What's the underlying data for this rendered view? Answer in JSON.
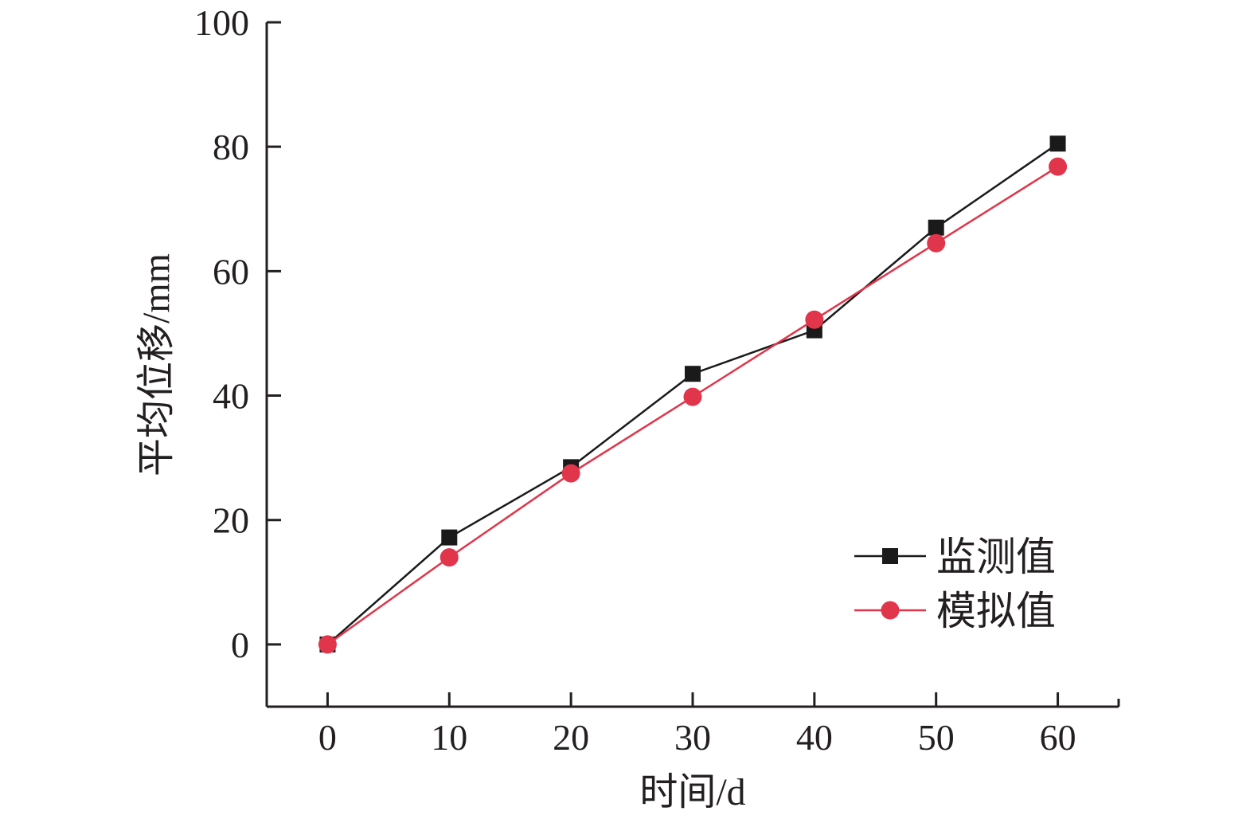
{
  "chart_data": {
    "type": "line",
    "title": "",
    "xlabel": "时间/d",
    "ylabel": "平均位移/mm",
    "xlim": [
      -5,
      65
    ],
    "ylim": [
      -10,
      100
    ],
    "xticks": [
      0,
      10,
      20,
      30,
      40,
      50,
      60
    ],
    "yticks": [
      0,
      20,
      40,
      60,
      80,
      100
    ],
    "xtick_labels": [
      "0",
      "10",
      "20",
      "30",
      "40",
      "50",
      "60"
    ],
    "ytick_labels": [
      "0",
      "20",
      "40",
      "60",
      "80",
      "100"
    ],
    "x": [
      0,
      10,
      20,
      30,
      40,
      50,
      60
    ],
    "series": [
      {
        "name": "监测值",
        "marker": "square",
        "color": "#1a1a1a",
        "values": [
          0,
          17.2,
          28.5,
          43.5,
          50.5,
          67.0,
          80.5
        ]
      },
      {
        "name": "模拟值",
        "marker": "circle",
        "color": "#e0354a",
        "values": [
          0,
          14.0,
          27.5,
          39.8,
          52.2,
          64.5,
          76.8
        ]
      }
    ],
    "legend_position": "bottom-right",
    "grid": false
  }
}
